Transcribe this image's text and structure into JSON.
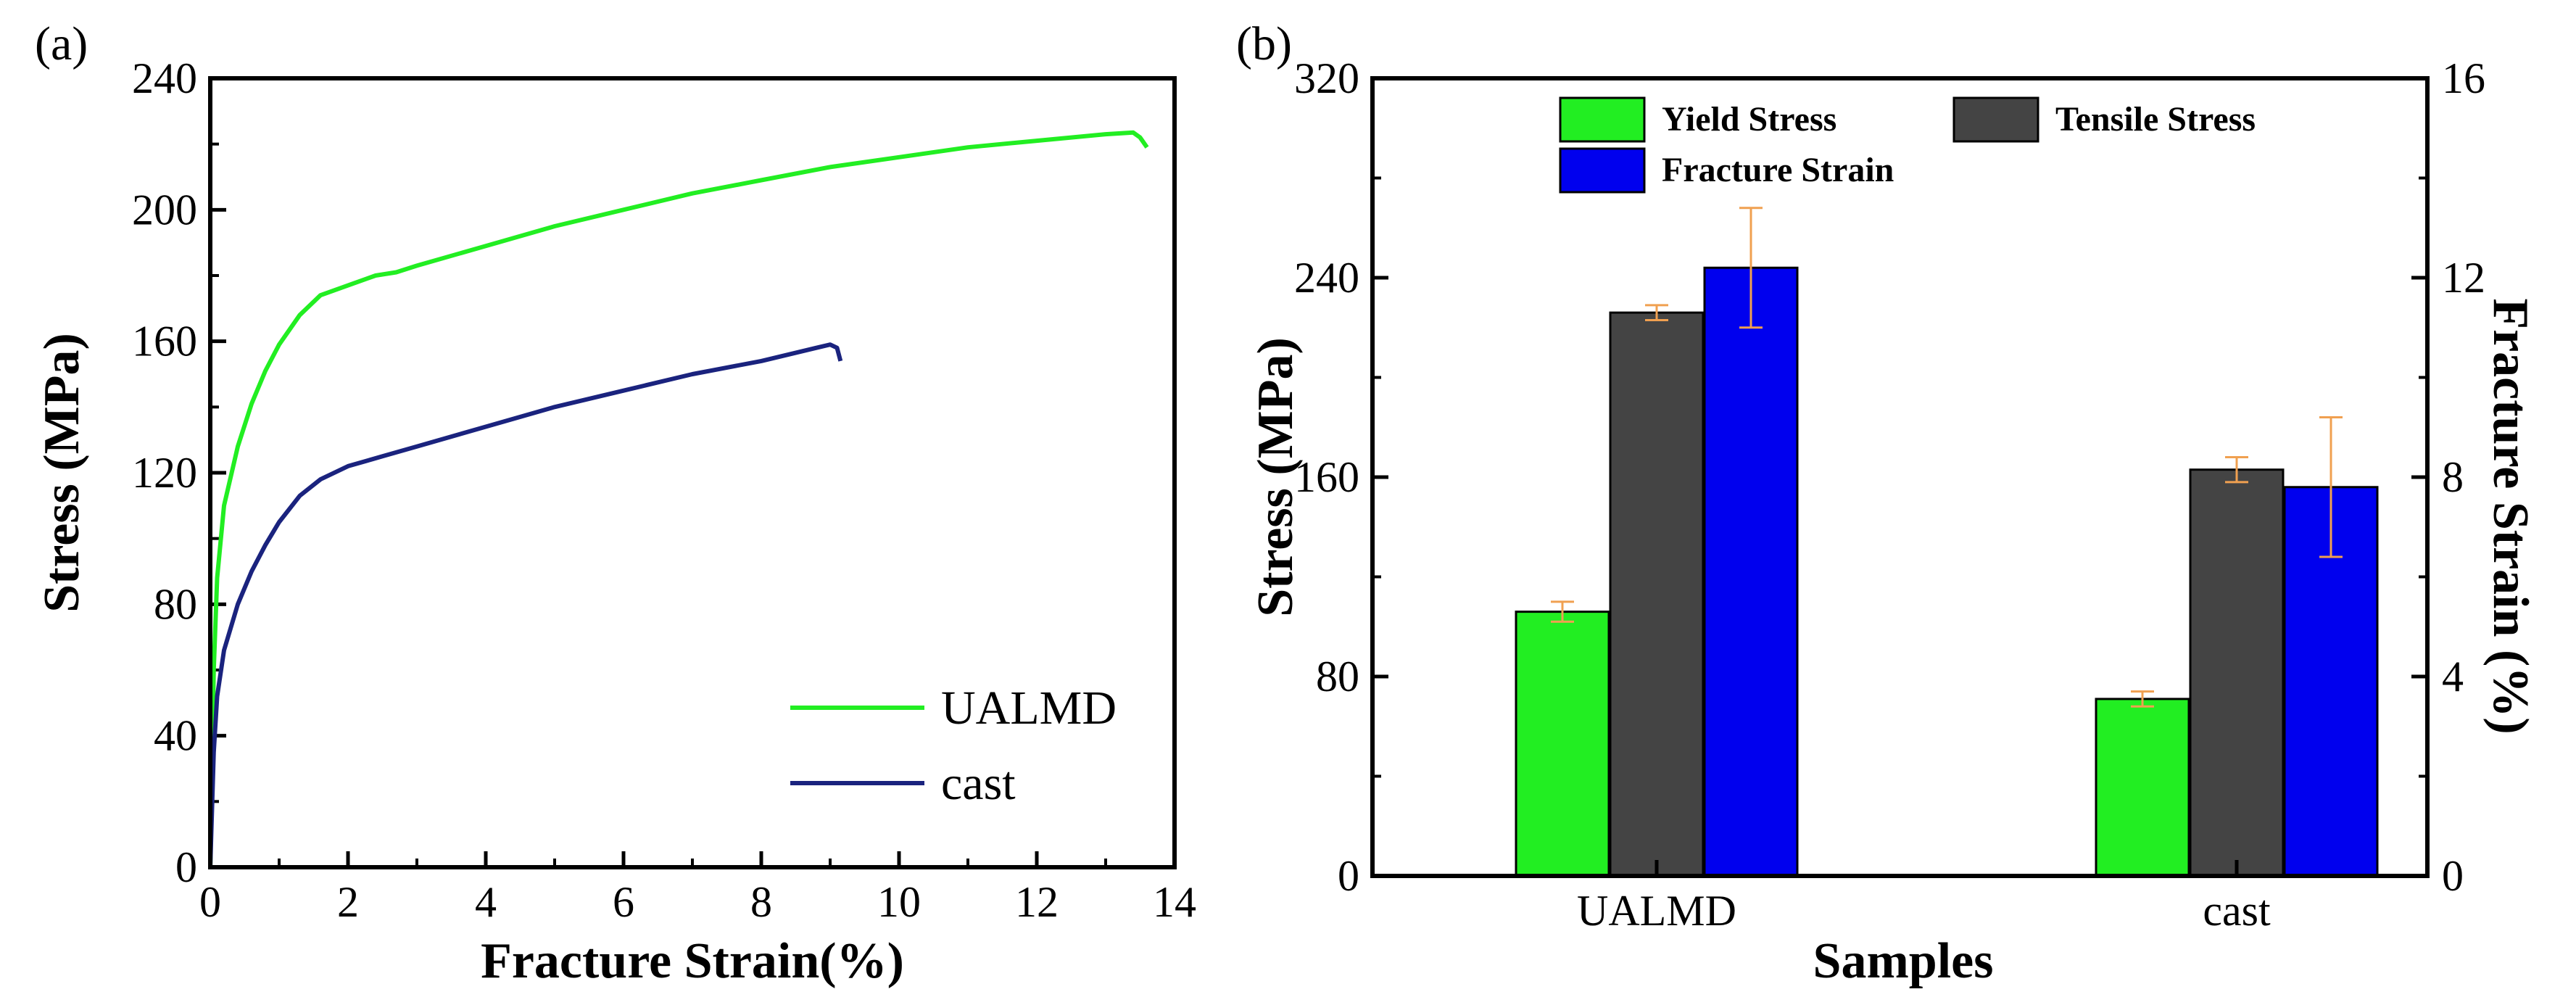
{
  "chart_data": [
    {
      "panel": "(a)",
      "type": "line",
      "xlabel": "Fracture Strain(%)",
      "ylabel": "Stress (MPa)",
      "xlim": [
        0,
        14
      ],
      "ylim": [
        0,
        240
      ],
      "xticks": [
        "0",
        "2",
        "4",
        "6",
        "8",
        "10",
        "12",
        "14"
      ],
      "yticks": [
        "0",
        "40",
        "80",
        "120",
        "160",
        "200",
        "240"
      ],
      "legend_position": "bottom-right",
      "series": [
        {
          "name": "UALMD",
          "color": "#22ee22",
          "x": [
            0,
            0.05,
            0.1,
            0.2,
            0.4,
            0.6,
            0.8,
            1.0,
            1.3,
            1.6,
            2.0,
            2.4,
            2.7,
            3.0,
            4.0,
            5.0,
            6.0,
            7.0,
            8.0,
            9.0,
            10.0,
            11.0,
            12.0,
            13.0,
            13.4,
            13.5,
            13.6
          ],
          "y": [
            0,
            60,
            88,
            110,
            128,
            141,
            151,
            159,
            168,
            174,
            177,
            180,
            181,
            183,
            189,
            195,
            200,
            205,
            209,
            213,
            216,
            219,
            221,
            223,
            223.5,
            222,
            219
          ]
        },
        {
          "name": "cast",
          "color": "#1a237e",
          "x": [
            0,
            0.05,
            0.1,
            0.2,
            0.4,
            0.6,
            0.8,
            1.0,
            1.3,
            1.6,
            2.0,
            2.5,
            3.0,
            4.0,
            5.0,
            6.0,
            7.0,
            8.0,
            8.8,
            9.0,
            9.1,
            9.15
          ],
          "y": [
            0,
            35,
            52,
            66,
            80,
            90,
            98,
            105,
            113,
            118,
            122,
            125,
            128,
            134,
            140,
            145,
            150,
            154,
            158,
            159,
            158,
            154
          ]
        }
      ]
    },
    {
      "panel": "(b)",
      "type": "bar",
      "xlabel": "Samples",
      "ylabel": "Stress (MPa)",
      "y2label": "Fracture Strain (%)",
      "categories": [
        "UALMD",
        "cast"
      ],
      "ylim": [
        0,
        320
      ],
      "y2lim": [
        0,
        16
      ],
      "yticks": [
        "0",
        "80",
        "160",
        "240",
        "320"
      ],
      "y2ticks": [
        "0",
        "4",
        "8",
        "12",
        "16"
      ],
      "legend_position": "top",
      "error_bar_color": "#f0a050",
      "series": [
        {
          "name": "Yield Stress",
          "axis": "left",
          "color": "#22ee22",
          "values": [
            106,
            71
          ],
          "errors": [
            4,
            3
          ]
        },
        {
          "name": "Tensile Stress",
          "axis": "left",
          "color": "#444444",
          "values": [
            226,
            163
          ],
          "errors": [
            3,
            5
          ]
        },
        {
          "name": "Fracture Strain",
          "axis": "right",
          "color": "#0000ee",
          "values": [
            12.2,
            7.8
          ],
          "errors": [
            1.2,
            1.4
          ]
        }
      ]
    }
  ]
}
